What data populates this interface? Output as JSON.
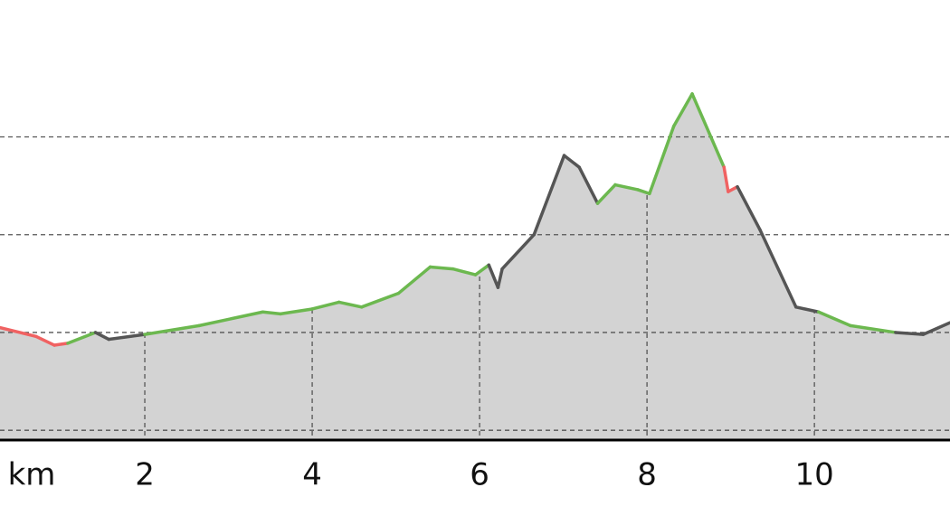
{
  "chart_data": {
    "type": "area",
    "x_label": "km",
    "x": [
      0.27,
      0.7,
      0.92,
      1.08,
      1.41,
      1.57,
      2.0,
      2.65,
      3.41,
      3.62,
      4.0,
      4.32,
      4.59,
      5.03,
      5.41,
      5.68,
      5.95,
      6.11,
      6.22,
      6.27,
      6.65,
      7.01,
      7.19,
      7.41,
      7.62,
      7.89,
      8.03,
      8.32,
      8.54,
      8.92,
      8.97,
      9.08,
      9.35,
      9.78,
      10.05,
      10.43,
      10.97,
      11.3,
      11.62
    ],
    "values": [
      205,
      196,
      187,
      189,
      200,
      193,
      198,
      207,
      221,
      219,
      224,
      231,
      226,
      240,
      267,
      265,
      259,
      269,
      246,
      265,
      300,
      381,
      369,
      332,
      351,
      346,
      342,
      411,
      444,
      369,
      344,
      349,
      305,
      226,
      221,
      207,
      200,
      198,
      210
    ],
    "segment_colors": [
      "#f06262",
      "#f06262",
      "#f06262",
      "#6cb84f",
      "#555555",
      "#555555",
      "#6cb84f",
      "#6cb84f",
      "#6cb84f",
      "#6cb84f",
      "#6cb84f",
      "#6cb84f",
      "#6cb84f",
      "#6cb84f",
      "#6cb84f",
      "#6cb84f",
      "#6cb84f",
      "#555555",
      "#555555",
      "#555555",
      "#555555",
      "#555555",
      "#555555",
      "#6cb84f",
      "#6cb84f",
      "#6cb84f",
      "#6cb84f",
      "#6cb84f",
      "#6cb84f",
      "#f06262",
      "#f06262",
      "#555555",
      "#555555",
      "#555555",
      "#6cb84f",
      "#6cb84f",
      "#555555",
      "#555555"
    ],
    "fill": "#d3d3d3",
    "xlim": [
      0.27,
      11.62
    ],
    "xticks": [
      2,
      4,
      6,
      8,
      10
    ],
    "ylim": [
      90,
      540
    ],
    "yticks": [
      100,
      200,
      300,
      400
    ],
    "grid": true
  }
}
